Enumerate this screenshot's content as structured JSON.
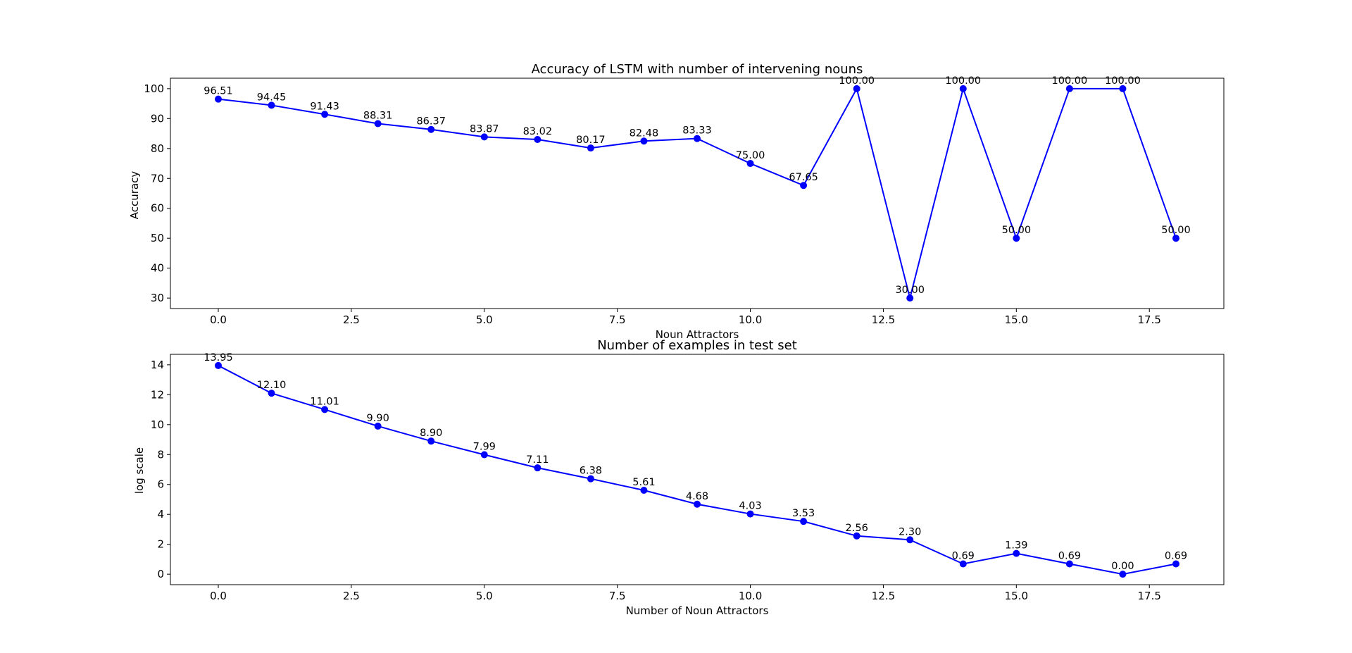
{
  "chart_data": [
    {
      "type": "line",
      "title": "Accuracy of LSTM with number of intervening nouns",
      "xlabel": "Noun Attractors",
      "ylabel": "Accuracy",
      "xlim": [
        -0.9,
        18.9
      ],
      "ylim": [
        26.5,
        103.5
      ],
      "xticks": [
        0,
        2.5,
        5,
        7.5,
        10,
        12.5,
        15,
        17.5
      ],
      "xtick_labels": [
        "0.0",
        "2.5",
        "5.0",
        "7.5",
        "10.0",
        "12.5",
        "15.0",
        "17.5"
      ],
      "yticks": [
        30,
        40,
        50,
        60,
        70,
        80,
        90,
        100
      ],
      "ytick_labels": [
        "30",
        "40",
        "50",
        "60",
        "70",
        "80",
        "90",
        "100"
      ],
      "grid": false,
      "color": "#0000ff",
      "x": [
        0,
        1,
        2,
        3,
        4,
        5,
        6,
        7,
        8,
        9,
        10,
        11,
        12,
        13,
        14,
        15,
        16,
        17,
        18
      ],
      "y": [
        96.51,
        94.45,
        91.43,
        88.31,
        86.37,
        83.87,
        83.02,
        80.17,
        82.48,
        83.33,
        75.0,
        67.65,
        100.0,
        30.0,
        100.0,
        50.0,
        100.0,
        100.0,
        50.0
      ],
      "data_labels": [
        "96.51",
        "94.45",
        "91.43",
        "88.31",
        "86.37",
        "83.87",
        "83.02",
        "80.17",
        "82.48",
        "83.33",
        "75.00",
        "67.65",
        "100.00",
        "30.00",
        "100.00",
        "50.00",
        "100.00",
        "100.00",
        "50.00"
      ]
    },
    {
      "type": "line",
      "title": "Number of examples in test set",
      "xlabel": "Number of Noun Attractors",
      "ylabel": "log scale",
      "xlim": [
        -0.9,
        18.9
      ],
      "ylim": [
        -0.7,
        14.7
      ],
      "xticks": [
        0,
        2.5,
        5,
        7.5,
        10,
        12.5,
        15,
        17.5
      ],
      "xtick_labels": [
        "0.0",
        "2.5",
        "5.0",
        "7.5",
        "10.0",
        "12.5",
        "15.0",
        "17.5"
      ],
      "yticks": [
        0,
        2,
        4,
        6,
        8,
        10,
        12,
        14
      ],
      "ytick_labels": [
        "0",
        "2",
        "4",
        "6",
        "8",
        "10",
        "12",
        "14"
      ],
      "grid": false,
      "color": "#0000ff",
      "x": [
        0,
        1,
        2,
        3,
        4,
        5,
        6,
        7,
        8,
        9,
        10,
        11,
        12,
        13,
        14,
        15,
        16,
        17,
        18
      ],
      "y": [
        13.95,
        12.1,
        11.01,
        9.9,
        8.9,
        7.99,
        7.11,
        6.38,
        5.61,
        4.68,
        4.03,
        3.53,
        2.56,
        2.3,
        0.69,
        1.39,
        0.69,
        0.0,
        0.69
      ],
      "data_labels": [
        "13.95",
        "12.10",
        "11.01",
        "9.90",
        "8.90",
        "7.99",
        "7.11",
        "6.38",
        "5.61",
        "4.68",
        "4.03",
        "3.53",
        "2.56",
        "2.30",
        "0.69",
        "1.39",
        "0.69",
        "0.00",
        "0.69"
      ]
    }
  ]
}
